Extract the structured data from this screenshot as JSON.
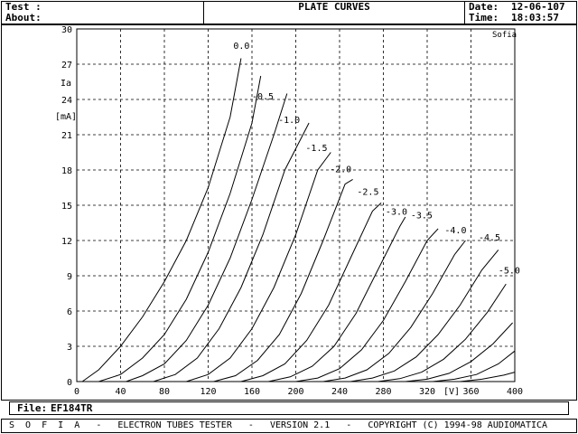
{
  "header": {
    "test_label": "Test :",
    "about_label": "About:",
    "title": "PLATE CURVES",
    "date_label": "Date:",
    "date_value": "12-06-107",
    "time_label": "Time:",
    "time_value": "18:03:57"
  },
  "chart_data": {
    "type": "line",
    "xlabel": "[V]",
    "ylabel_top": "Ia",
    "ylabel_bottom": "[mA]",
    "brand": "Sofia",
    "xlim": [
      0,
      400
    ],
    "ylim": [
      0,
      30
    ],
    "x_ticks": [
      "0",
      "40",
      "80",
      "120",
      "160",
      "200",
      "240",
      "280",
      "320",
      "360",
      "400"
    ],
    "y_ticks": [
      "0",
      "3",
      "6",
      "9",
      "12",
      "15",
      "18",
      "21",
      "24",
      "27",
      "30"
    ],
    "grid": true,
    "series": [
      {
        "name": "0.0",
        "points": [
          [
            5,
            0
          ],
          [
            20,
            1
          ],
          [
            40,
            3
          ],
          [
            60,
            5.5
          ],
          [
            80,
            8.5
          ],
          [
            100,
            12
          ],
          [
            120,
            16.5
          ],
          [
            140,
            22.5
          ],
          [
            150,
            27.5
          ]
        ]
      },
      {
        "name": "-0.5",
        "points": [
          [
            20,
            0
          ],
          [
            40,
            0.6
          ],
          [
            60,
            2
          ],
          [
            80,
            4
          ],
          [
            100,
            7
          ],
          [
            120,
            11
          ],
          [
            140,
            16
          ],
          [
            160,
            22
          ],
          [
            168,
            26
          ]
        ]
      },
      {
        "name": "-1.0",
        "points": [
          [
            45,
            0
          ],
          [
            60,
            0.5
          ],
          [
            80,
            1.5
          ],
          [
            100,
            3.5
          ],
          [
            120,
            6.5
          ],
          [
            140,
            10.5
          ],
          [
            160,
            15.5
          ],
          [
            180,
            21
          ],
          [
            192,
            24.5
          ]
        ]
      },
      {
        "name": "-1.5",
        "points": [
          [
            70,
            0
          ],
          [
            90,
            0.6
          ],
          [
            110,
            2
          ],
          [
            130,
            4.5
          ],
          [
            150,
            8
          ],
          [
            170,
            12.5
          ],
          [
            190,
            18
          ],
          [
            212,
            22
          ]
        ]
      },
      {
        "name": "-2.0",
        "points": [
          [
            100,
            0
          ],
          [
            120,
            0.6
          ],
          [
            140,
            2
          ],
          [
            160,
            4.5
          ],
          [
            180,
            8
          ],
          [
            200,
            12.5
          ],
          [
            220,
            18
          ],
          [
            232,
            19.5
          ]
        ]
      },
      {
        "name": "-2.5",
        "points": [
          [
            125,
            0
          ],
          [
            145,
            0.5
          ],
          [
            165,
            1.8
          ],
          [
            185,
            4
          ],
          [
            205,
            7.5
          ],
          [
            225,
            12
          ],
          [
            245,
            16.8
          ],
          [
            252,
            17.2
          ]
        ]
      },
      {
        "name": "-3.0",
        "points": [
          [
            150,
            0
          ],
          [
            170,
            0.5
          ],
          [
            190,
            1.5
          ],
          [
            210,
            3.5
          ],
          [
            230,
            6.5
          ],
          [
            250,
            10.5
          ],
          [
            270,
            14.5
          ],
          [
            278,
            15.2
          ]
        ]
      },
      {
        "name": "-3.5",
        "points": [
          [
            175,
            0
          ],
          [
            195,
            0.4
          ],
          [
            215,
            1.3
          ],
          [
            235,
            3
          ],
          [
            255,
            5.8
          ],
          [
            275,
            9.5
          ],
          [
            295,
            13.2
          ],
          [
            300,
            14
          ]
        ]
      },
      {
        "name": "-4.0",
        "points": [
          [
            200,
            0
          ],
          [
            220,
            0.3
          ],
          [
            240,
            1.1
          ],
          [
            260,
            2.7
          ],
          [
            280,
            5.2
          ],
          [
            300,
            8.5
          ],
          [
            320,
            12
          ],
          [
            330,
            13
          ]
        ]
      },
      {
        "name": "-4.5",
        "points": [
          [
            225,
            0
          ],
          [
            245,
            0.3
          ],
          [
            265,
            1
          ],
          [
            285,
            2.4
          ],
          [
            305,
            4.6
          ],
          [
            325,
            7.5
          ],
          [
            345,
            10.8
          ],
          [
            355,
            12
          ]
        ]
      },
      {
        "name": "-5.0",
        "points": [
          [
            250,
            0
          ],
          [
            270,
            0.3
          ],
          [
            290,
            0.9
          ],
          [
            310,
            2.1
          ],
          [
            330,
            4
          ],
          [
            350,
            6.5
          ],
          [
            370,
            9.5
          ],
          [
            385,
            11.2
          ]
        ]
      },
      {
        "name": "",
        "points": [
          [
            275,
            0
          ],
          [
            295,
            0.25
          ],
          [
            315,
            0.8
          ],
          [
            335,
            1.9
          ],
          [
            355,
            3.6
          ],
          [
            375,
            5.9
          ],
          [
            392,
            8.3
          ]
        ]
      },
      {
        "name": "",
        "points": [
          [
            300,
            0
          ],
          [
            320,
            0.2
          ],
          [
            340,
            0.7
          ],
          [
            360,
            1.7
          ],
          [
            380,
            3.2
          ],
          [
            398,
            5
          ]
        ]
      },
      {
        "name": "",
        "points": [
          [
            325,
            0
          ],
          [
            345,
            0.2
          ],
          [
            365,
            0.6
          ],
          [
            385,
            1.5
          ],
          [
            400,
            2.6
          ]
        ]
      },
      {
        "name": "",
        "points": [
          [
            350,
            0
          ],
          [
            370,
            0.2
          ],
          [
            390,
            0.55
          ],
          [
            400,
            0.8
          ]
        ]
      }
    ],
    "label_values": [
      {
        "text": "0.0",
        "x": 143,
        "y": 28.3
      },
      {
        "text": "-0.5",
        "x": 160,
        "y": 24.0
      },
      {
        "text": "-1.0",
        "x": 184,
        "y": 22.0
      },
      {
        "text": "-1.5",
        "x": 209,
        "y": 19.6
      },
      {
        "text": "-2.0",
        "x": 231,
        "y": 17.8
      },
      {
        "text": "-2.5",
        "x": 256,
        "y": 15.9
      },
      {
        "text": "-3.0",
        "x": 282,
        "y": 14.2
      },
      {
        "text": "-3.5",
        "x": 305,
        "y": 13.9
      },
      {
        "text": "-4.0",
        "x": 336,
        "y": 12.6
      },
      {
        "text": "-4.5",
        "x": 367,
        "y": 12.0
      },
      {
        "text": "-5.0",
        "x": 385,
        "y": 9.2
      }
    ]
  },
  "file": {
    "label": "File:",
    "value": "EF184TR"
  },
  "footer": {
    "text": "S  O  F  I  A   -   ELECTRON TUBES TESTER   -   VERSION 2.1   -   COPYRIGHT (C) 1994-98 AUDIOMATICA"
  }
}
